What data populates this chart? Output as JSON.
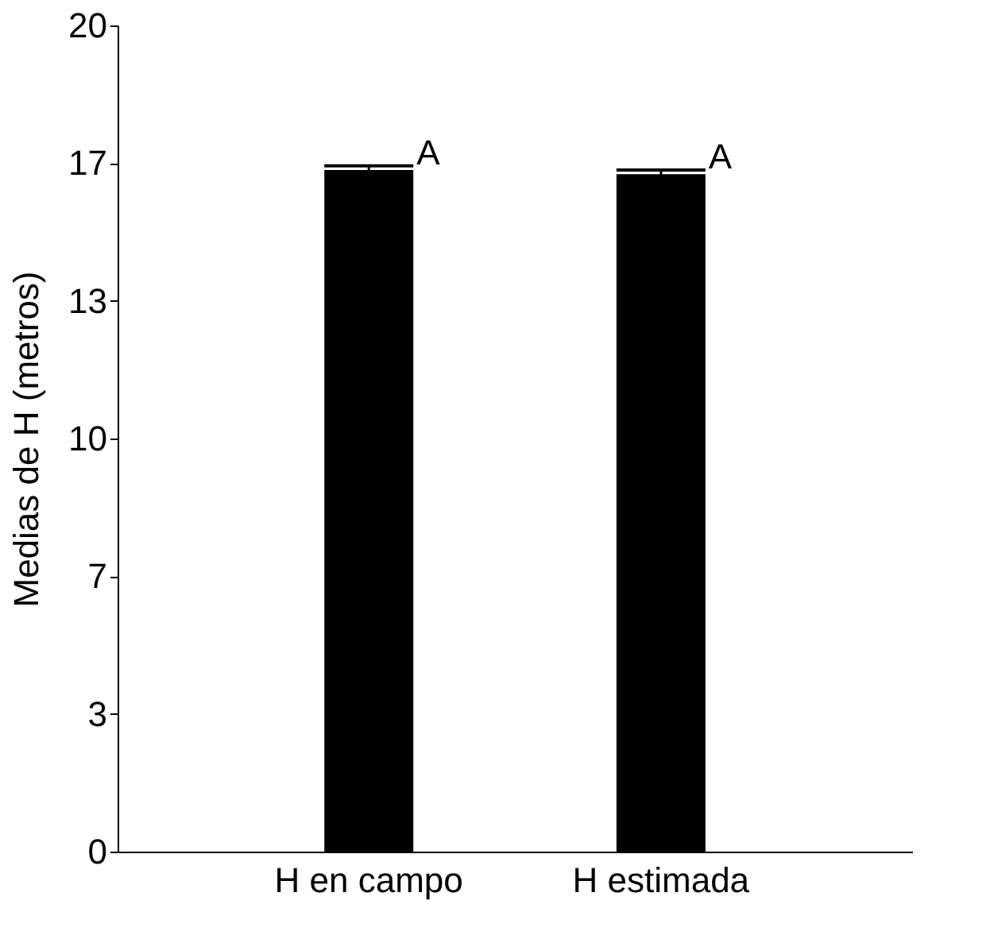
{
  "chart_data": {
    "type": "bar",
    "ylabel": "Medias de H (metros)",
    "categories": [
      "H en campo",
      "H estimada"
    ],
    "values": [
      16.5,
      16.4
    ],
    "errors": [
      0.1,
      0.1
    ],
    "color": "#000000",
    "ylim": [
      0,
      20
    ],
    "yticks": [
      0,
      {
        "value": 3.333,
        "label": "3"
      },
      {
        "value": 6.667,
        "label": "7"
      },
      10,
      {
        "value": 13.333,
        "label": "13"
      },
      {
        "value": 16.667,
        "label": "17"
      },
      20
    ],
    "annotations": [
      {
        "text": "A",
        "x": "H en campo",
        "y": 16.6
      },
      {
        "text": "A",
        "x": "H estimada",
        "y": 16.5
      }
    ],
    "grid": false
  }
}
